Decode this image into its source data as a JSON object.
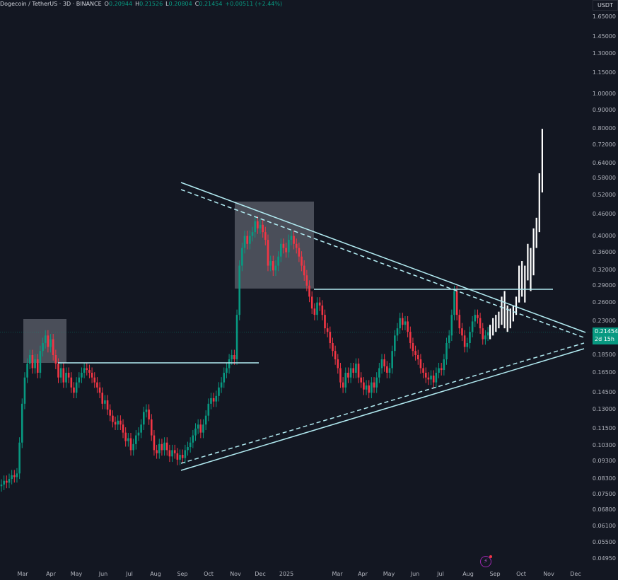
{
  "header": {
    "title": "Dogecoin / TetherUS · 3D · BINANCE",
    "open_label": "O",
    "open": "0.20944",
    "high_label": "H",
    "high": "0.21526",
    "low_label": "L",
    "low": "0.20804",
    "close_label": "C",
    "close": "0.21454",
    "change": "+0.00511 (+2.44%)"
  },
  "price_axis": {
    "currency": "USDT",
    "current_price": "0.21454",
    "countdown": "2d 15h"
  },
  "icons": {
    "alert": "lightning-icon"
  },
  "colors": {
    "up": "#089981",
    "down": "#f23645",
    "drawing": "#b2ebf2",
    "projection": "#ffffff",
    "box": "#787b86"
  },
  "chart_data": {
    "type": "candlestick",
    "title": "Dogecoin / TetherUS · 3D · BINANCE",
    "scale": "log",
    "ylim": [
      0.0495,
      1.65
    ],
    "y_ticks": [
      "1.65000",
      "1.45000",
      "1.30000",
      "1.15000",
      "1.00000",
      "0.90000",
      "0.80000",
      "0.72000",
      "0.64000",
      "0.58000",
      "0.52000",
      "0.46000",
      "0.40000",
      "0.36000",
      "0.32000",
      "0.29000",
      "0.26000",
      "0.23000",
      "0.18500",
      "0.16500",
      "0.14500",
      "0.13000",
      "0.11500",
      "0.10300",
      "0.09300",
      "0.08300",
      "0.07500",
      "0.06800",
      "0.06100",
      "0.05500",
      "0.04950"
    ],
    "x_ticks": [
      "Mar",
      "Apr",
      "May",
      "Jun",
      "Jul",
      "Aug",
      "Sep",
      "Oct",
      "Nov",
      "Dec",
      "2025",
      "Mar",
      "Apr",
      "May",
      "Jun",
      "Jul",
      "Aug",
      "Sep",
      "Oct",
      "Nov",
      "Dec"
    ],
    "closes": [
      0.08,
      0.082,
      0.081,
      0.083,
      0.085,
      0.084,
      0.086,
      0.105,
      0.135,
      0.16,
      0.175,
      0.185,
      0.17,
      0.18,
      0.165,
      0.19,
      0.2,
      0.21,
      0.195,
      0.205,
      0.185,
      0.175,
      0.16,
      0.17,
      0.155,
      0.165,
      0.16,
      0.15,
      0.145,
      0.155,
      0.16,
      0.165,
      0.17,
      0.168,
      0.165,
      0.16,
      0.155,
      0.15,
      0.145,
      0.135,
      0.138,
      0.13,
      0.125,
      0.12,
      0.118,
      0.121,
      0.118,
      0.112,
      0.106,
      0.108,
      0.1,
      0.104,
      0.11,
      0.112,
      0.118,
      0.128,
      0.13,
      0.122,
      0.11,
      0.1,
      0.098,
      0.104,
      0.1,
      0.105,
      0.1,
      0.096,
      0.1,
      0.098,
      0.094,
      0.097,
      0.095,
      0.1,
      0.102,
      0.105,
      0.11,
      0.115,
      0.118,
      0.112,
      0.118,
      0.125,
      0.135,
      0.14,
      0.137,
      0.142,
      0.15,
      0.155,
      0.165,
      0.17,
      0.18,
      0.185,
      0.18,
      0.24,
      0.33,
      0.37,
      0.4,
      0.38,
      0.4,
      0.41,
      0.44,
      0.42,
      0.43,
      0.41,
      0.39,
      0.33,
      0.34,
      0.32,
      0.33,
      0.35,
      0.38,
      0.37,
      0.36,
      0.39,
      0.4,
      0.38,
      0.37,
      0.35,
      0.33,
      0.31,
      0.29,
      0.27,
      0.25,
      0.24,
      0.26,
      0.255,
      0.24,
      0.22,
      0.215,
      0.2,
      0.19,
      0.18,
      0.17,
      0.155,
      0.15,
      0.165,
      0.16,
      0.17,
      0.165,
      0.175,
      0.16,
      0.155,
      0.148,
      0.152,
      0.145,
      0.155,
      0.15,
      0.16,
      0.17,
      0.18,
      0.172,
      0.165,
      0.17,
      0.19,
      0.21,
      0.22,
      0.235,
      0.225,
      0.23,
      0.215,
      0.2,
      0.19,
      0.185,
      0.18,
      0.17,
      0.165,
      0.16,
      0.158,
      0.162,
      0.155,
      0.165,
      0.17,
      0.168,
      0.18,
      0.2,
      0.21,
      0.24,
      0.28,
      0.24,
      0.22,
      0.21,
      0.195,
      0.2,
      0.215,
      0.23,
      0.24,
      0.235,
      0.22,
      0.205,
      0.21,
      0.21454
    ],
    "projection_ranges": [
      [
        0.205,
        0.225
      ],
      [
        0.21,
        0.235
      ],
      [
        0.215,
        0.24
      ],
      [
        0.22,
        0.245
      ],
      [
        0.225,
        0.27
      ],
      [
        0.22,
        0.28
      ],
      [
        0.215,
        0.255
      ],
      [
        0.22,
        0.25
      ],
      [
        0.23,
        0.255
      ],
      [
        0.24,
        0.27
      ],
      [
        0.26,
        0.33
      ],
      [
        0.27,
        0.34
      ],
      [
        0.26,
        0.33
      ],
      [
        0.3,
        0.38
      ],
      [
        0.28,
        0.37
      ],
      [
        0.31,
        0.42
      ],
      [
        0.37,
        0.45
      ],
      [
        0.41,
        0.6
      ],
      [
        0.53,
        0.8
      ]
    ]
  }
}
